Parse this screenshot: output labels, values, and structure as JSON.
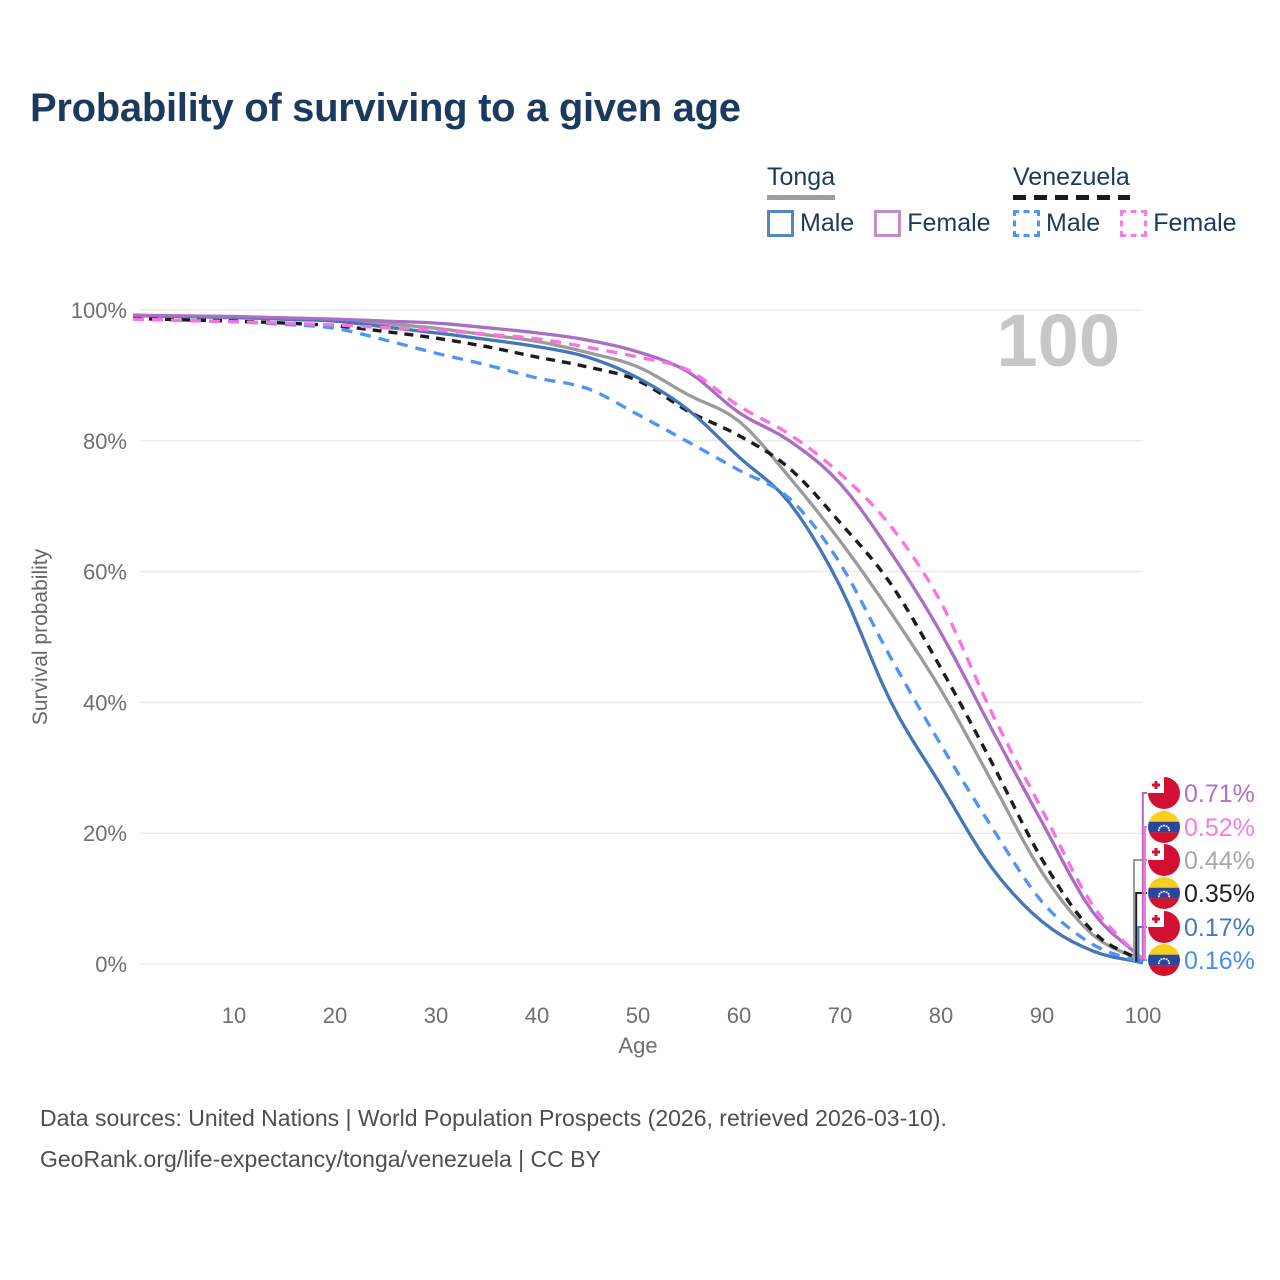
{
  "title": "Probability of surviving to a given age",
  "watermark": "100",
  "legend": {
    "groups": [
      {
        "name": "Tonga",
        "line_style": "solid",
        "underline_color": "#9e9e9e",
        "items": [
          {
            "label": "Male",
            "color": "#5586c3",
            "dashed": false
          },
          {
            "label": "Female",
            "color": "#c38bca",
            "dashed": false
          }
        ]
      },
      {
        "name": "Venezuela",
        "line_style": "dashed",
        "underline_color": "#1b1b1b",
        "items": [
          {
            "label": "Male",
            "color": "#4d93fa",
            "dashed": true
          },
          {
            "label": "Female",
            "color": "#fc7ae2",
            "dashed": true
          }
        ]
      }
    ]
  },
  "chart_data": {
    "type": "line",
    "title": "Probability of surviving to a given age",
    "xlabel": "Age",
    "ylabel": "Survival probability",
    "xlim": [
      0,
      100
    ],
    "ylim": [
      0,
      100
    ],
    "x_ticks": [
      10,
      20,
      30,
      40,
      50,
      60,
      70,
      80,
      90,
      100
    ],
    "y_ticks": [
      "0%",
      "20%",
      "40%",
      "60%",
      "80%",
      "100%"
    ],
    "y_tick_values": [
      0,
      20,
      40,
      60,
      80,
      100
    ],
    "grid": "horizontal",
    "legend_position": "top-right",
    "hover_age": 100,
    "ages": [
      0,
      5,
      10,
      15,
      20,
      25,
      30,
      35,
      40,
      45,
      50,
      55,
      60,
      65,
      70,
      75,
      80,
      85,
      90,
      95,
      100
    ],
    "series": [
      {
        "key": "tonga-all",
        "name": "Tonga",
        "country": "Tonga",
        "sex": "Both",
        "color": "#9b9b9b",
        "dashed": false,
        "flag": "tonga",
        "end_label": "0.44%",
        "end_label_color": "#a8a8a8",
        "label_slot": 2,
        "values": [
          99.1,
          99.0,
          98.8,
          98.6,
          98.4,
          97.9,
          97.2,
          96.2,
          95.2,
          93.5,
          91.3,
          87.0,
          83.0,
          74.4,
          64.7,
          53.8,
          41.9,
          28.0,
          14.0,
          4.5,
          0.44
        ]
      },
      {
        "key": "venezuela-all",
        "name": "Venezuela",
        "country": "Venezuela",
        "sex": "Both",
        "color": "#1c1c1c",
        "dashed": true,
        "flag": "venezuela",
        "end_label": "0.35%",
        "end_label_color": "#1f1f1f",
        "label_slot": 3,
        "values": [
          98.7,
          98.5,
          98.3,
          98.0,
          97.6,
          96.7,
          95.7,
          94.4,
          92.8,
          91.3,
          89.2,
          84.5,
          80.8,
          75.8,
          67.5,
          58.2,
          45.2,
          30.9,
          16.0,
          5.0,
          0.35
        ]
      },
      {
        "key": "tonga-male",
        "name": "Tonga Male",
        "country": "Tonga",
        "sex": "Male",
        "color": "#4377b8",
        "dashed": false,
        "flag": "tonga",
        "end_label": "0.17%",
        "end_label_color": "#4678bd",
        "label_slot": 4,
        "values": [
          99.2,
          99.0,
          98.9,
          98.6,
          98.3,
          97.4,
          96.5,
          95.5,
          94.4,
          92.8,
          89.6,
          84.7,
          77.5,
          70.5,
          57.8,
          40.2,
          27.3,
          14.8,
          6.5,
          2.0,
          0.17
        ]
      },
      {
        "key": "venezuela-male",
        "name": "Venezuela Male",
        "country": "Venezuela",
        "sex": "Male",
        "color": "#4d93fa",
        "dashed": true,
        "flag": "venezuela",
        "end_label": "0.16%",
        "end_label_color": "#4a8cf0",
        "label_slot": 5,
        "values": [
          98.6,
          98.4,
          98.2,
          97.8,
          97.2,
          95.4,
          93.4,
          91.6,
          89.6,
          88.0,
          84.0,
          79.8,
          75.5,
          71.2,
          61.3,
          46.9,
          33.5,
          21.0,
          9.5,
          3.0,
          0.16
        ]
      },
      {
        "key": "tonga-female",
        "name": "Tonga Female",
        "country": "Tonga",
        "sex": "Female",
        "color": "#ab6ec4",
        "dashed": false,
        "flag": "tonga",
        "end_label": "0.71%",
        "end_label_color": "#b071c4",
        "label_slot": 0,
        "values": [
          99.2,
          99.1,
          99.0,
          98.8,
          98.6,
          98.3,
          98.0,
          97.3,
          96.5,
          95.4,
          93.6,
          90.5,
          84.3,
          80.0,
          73.5,
          63.0,
          50.6,
          36.0,
          21.7,
          8.0,
          0.71
        ]
      },
      {
        "key": "venezuela-female",
        "name": "Venezuela Female",
        "country": "Venezuela",
        "sex": "Female",
        "color": "#fc70e2",
        "dashed": true,
        "flag": "venezuela",
        "end_label": "0.52%",
        "end_label_color": "#fc7ae2",
        "label_slot": 1,
        "values": [
          98.6,
          98.4,
          98.2,
          98.0,
          97.7,
          97.3,
          96.9,
          96.3,
          95.6,
          94.3,
          92.8,
          90.8,
          85.3,
          81.0,
          75.0,
          67.0,
          55.3,
          38.5,
          23.6,
          9.0,
          0.52
        ]
      }
    ]
  },
  "flags": {
    "tonga": {
      "red": "#d21034",
      "white": "#ffffff"
    },
    "venezuela": {
      "yellow": "#f6d01a",
      "blue": "#2a47a0",
      "red": "#cf142b"
    }
  },
  "footer": {
    "line1": "Data sources: United Nations | World Population Prospects (2026, retrieved 2026-03-10).",
    "line2": "GeoRank.org/life-expectancy/tonga/venezuela | CC BY"
  }
}
